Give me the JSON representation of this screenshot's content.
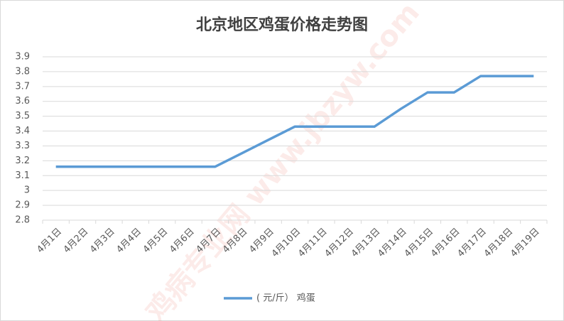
{
  "chart_data": {
    "type": "line",
    "title": "北京地区鸡蛋价格走势图",
    "watermark": "鸡病专业网 www.jbzyw.com",
    "categories": [
      "4月1日",
      "4月2日",
      "4月3日",
      "4月4日",
      "4月5日",
      "4月6日",
      "4月7日",
      "4月8日",
      "4月9日",
      "4月10日",
      "4月11日",
      "4月12日",
      "4月13日",
      "4月14日",
      "4月15日",
      "4月16日",
      "4月17日",
      "4月18日",
      "4月19日"
    ],
    "series": [
      {
        "name": "( 元/斤） 鸡蛋",
        "color": "#5b9bd5",
        "values": [
          3.16,
          3.16,
          3.16,
          3.16,
          3.16,
          3.16,
          3.16,
          3.25,
          3.34,
          3.43,
          3.43,
          3.43,
          3.43,
          3.55,
          3.66,
          3.66,
          3.77,
          3.77,
          3.77
        ]
      }
    ],
    "ylim": [
      2.8,
      3.9
    ],
    "yticks": [
      2.8,
      2.9,
      3,
      3.1,
      3.2,
      3.3,
      3.4,
      3.5,
      3.6,
      3.7,
      3.8,
      3.9
    ],
    "grid": true,
    "legend": "bottom"
  }
}
